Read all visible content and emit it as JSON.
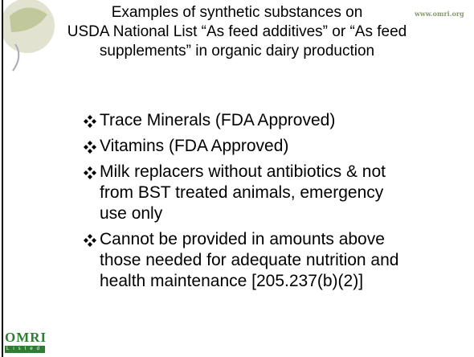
{
  "slide": {
    "title": {
      "lines": [
        "Examples of synthetic substances on",
        "USDA National List “As feed additives” or “As feed",
        "supplements” in organic dairy production"
      ]
    },
    "url": "www.omri.org",
    "bullets": [
      {
        "lines": [
          "Trace Minerals (FDA Approved)"
        ]
      },
      {
        "lines": [
          "Vitamins (FDA Approved)"
        ]
      },
      {
        "lines": [
          "Milk replacers without antibiotics & not",
          "from BST treated animals, emergency",
          "use only"
        ]
      },
      {
        "lines": [
          "Cannot be provided in amounts above",
          "those needed for adequate nutrition and",
          "health maintenance [205.237(b)(2)]"
        ]
      }
    ],
    "logo": {
      "name": "OMRI",
      "tag": "Listed"
    }
  }
}
